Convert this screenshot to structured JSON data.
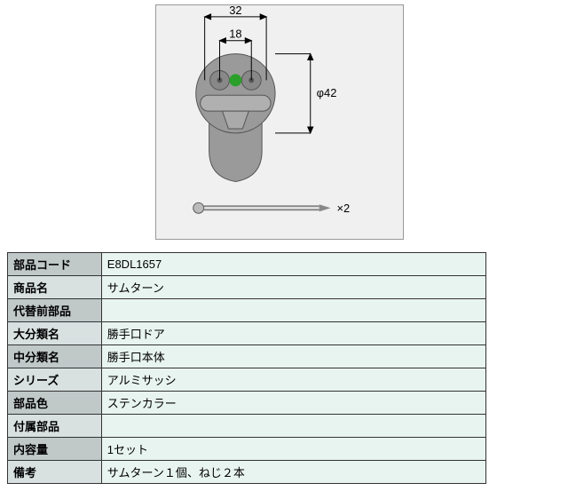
{
  "diagram": {
    "type": "technical-drawing",
    "background_color": "#f0f0f0",
    "part_color": "#9a9a9a",
    "dim_line_color": "#000000",
    "dim_fontsize": 13,
    "green_indicator": "#2aa02a",
    "dims": {
      "width_outer": "32",
      "width_inner": "18",
      "diameter": "φ42",
      "screw_qty": "×2"
    }
  },
  "spec": {
    "rows": [
      {
        "label": "部品コード",
        "value": "E8DL1657"
      },
      {
        "label": "商品名",
        "value": "サムターン"
      },
      {
        "label": "代替前部品",
        "value": ""
      },
      {
        "label": "大分類名",
        "value": "勝手口ドア"
      },
      {
        "label": "中分類名",
        "value": "勝手口本体"
      },
      {
        "label": "シリーズ",
        "value": "アルミサッシ"
      },
      {
        "label": "部品色",
        "value": "ステンカラー"
      },
      {
        "label": "付属部品",
        "value": ""
      },
      {
        "label": "内容量",
        "value": "1セット"
      },
      {
        "label": "備考",
        "value": "サムターン１個、ねじ２本"
      }
    ],
    "label_bg_odd": "#c0c8c8",
    "label_bg_even": "#d8e0e0",
    "value_bg": "#e8f4f0",
    "border_color": "#333333"
  }
}
